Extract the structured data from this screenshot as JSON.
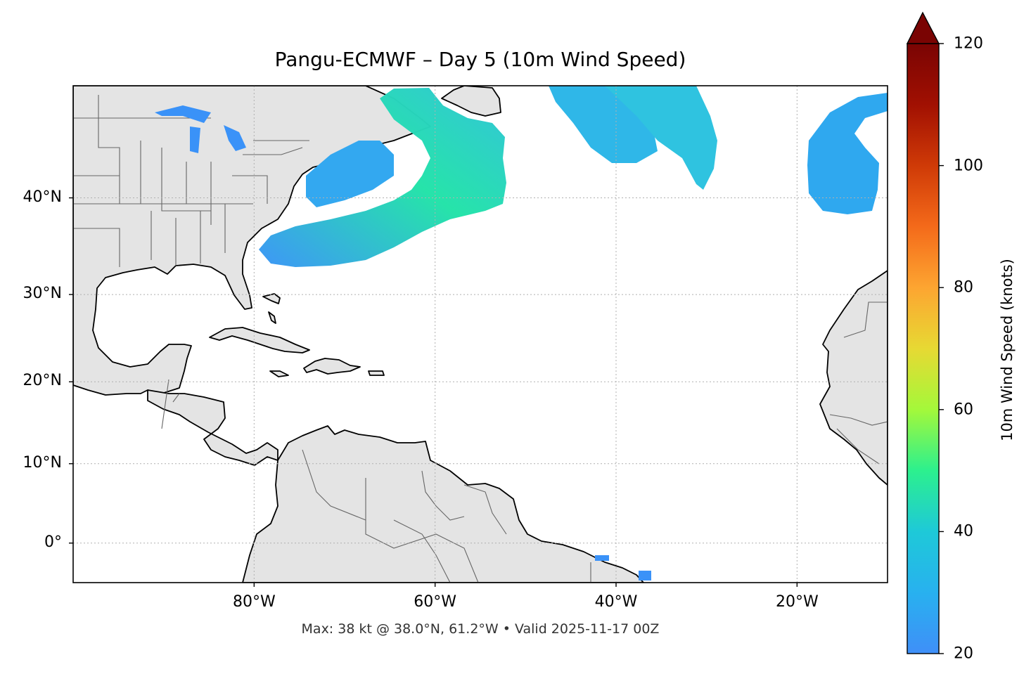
{
  "title": "Pangu-ECMWF – Day 5 (10m Wind Speed)",
  "subtitle": "Max: 38 kt @ 38.0°N, 61.2°W • Valid 2025-11-17 00Z",
  "map": {
    "lat_labels": [
      "40°N",
      "30°N",
      "20°N",
      "10°N",
      "0°"
    ],
    "lon_labels": [
      "80°W",
      "60°W",
      "40°W",
      "20°W"
    ],
    "lat_values": [
      40,
      30,
      20,
      10,
      0
    ],
    "lon_values": [
      -80,
      -60,
      -40,
      -20
    ],
    "extent": {
      "lon_min": -100,
      "lon_max": -10,
      "lat_min": -5,
      "lat_max": 50
    },
    "land_color": "#e4e4e4",
    "coast_color": "#000000",
    "border_color": "#666666",
    "grid_color": "#b0b0b0"
  },
  "wind": {
    "max_kt": 38,
    "max_lat": 38.0,
    "max_lon": -61.2
  },
  "colorbar": {
    "label": "10m Wind Speed (knots)",
    "ticks": [
      "120",
      "100",
      "80",
      "60",
      "40",
      "20"
    ],
    "tick_values": [
      120,
      100,
      80,
      60,
      40,
      20
    ],
    "min": 20,
    "max": 120,
    "colors": [
      "#3f8ff8",
      "#1ec9d8",
      "#2cf08e",
      "#a4f83a",
      "#e7d933",
      "#fda531",
      "#f46a1a",
      "#cf3a07",
      "#a11002",
      "#7a0403"
    ]
  }
}
